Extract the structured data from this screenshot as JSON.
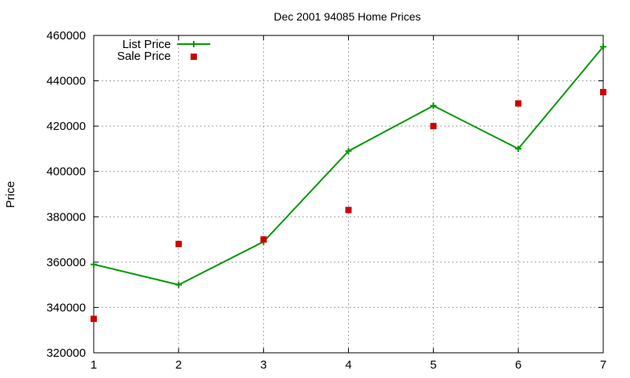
{
  "chart_data": {
    "type": "line",
    "title": "Dec 2001 94085 Home Prices",
    "xlabel": "",
    "ylabel": "Price",
    "x": [
      1,
      2,
      3,
      4,
      5,
      6,
      7
    ],
    "xlim": [
      1,
      7
    ],
    "ylim": [
      320000,
      460000
    ],
    "xticks": [
      "1",
      "2",
      "3",
      "4",
      "5",
      "6",
      "7"
    ],
    "yticks": [
      "320000",
      "340000",
      "360000",
      "380000",
      "400000",
      "420000",
      "440000",
      "460000"
    ],
    "grid": true,
    "legend_position": "top-left",
    "series": [
      {
        "name": "List Price",
        "style": "line-with-plus-markers",
        "color": "#009900",
        "values": [
          359000,
          350000,
          369000,
          409000,
          429000,
          410000,
          455000
        ]
      },
      {
        "name": "Sale Price",
        "style": "square-markers",
        "color": "#cc0000",
        "values": [
          335000,
          368000,
          370000,
          383000,
          420000,
          430000,
          435000
        ]
      }
    ]
  }
}
